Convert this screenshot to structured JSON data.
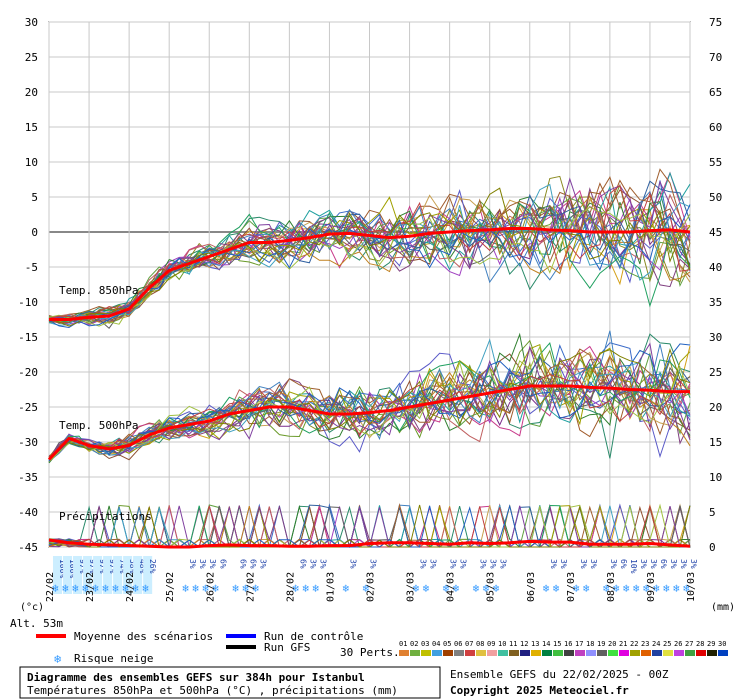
{
  "chart_data": {
    "type": "line",
    "title": "Diagramme des ensembles GEFS sur 384h pour Istanbul",
    "subtitle": "Températures 850hPa et 500hPa (°C) , précipitations (mm)",
    "left_axis": {
      "label": "(°c)",
      "ticks": [
        30,
        25,
        20,
        15,
        10,
        5,
        0,
        -5,
        -10,
        -15,
        -20,
        -25,
        -30,
        -35,
        -40,
        -45
      ],
      "range": [
        -45,
        30
      ]
    },
    "right_axis": {
      "label": "(mm)",
      "ticks": [
        75,
        70,
        65,
        60,
        55,
        50,
        45,
        40,
        35,
        30,
        25,
        20,
        15,
        10,
        5,
        0
      ],
      "range": [
        0,
        75
      ]
    },
    "altitude_label": "Alt. 53m",
    "x_labels": [
      "22/02",
      "23/02",
      "24/02",
      "25/02",
      "26/02",
      "27/02",
      "28/02",
      "01/03",
      "02/03",
      "03/03",
      "04/03",
      "05/03",
      "06/03",
      "07/03",
      "08/03",
      "09/03",
      "10/03"
    ],
    "section_labels": {
      "t850": "Temp. 850hPa",
      "t500": "Temp. 500hPa",
      "precip": "Précipitations"
    },
    "mean_850": {
      "x": [
        0,
        0.5,
        1,
        1.5,
        2,
        2.5,
        3,
        3.5,
        4,
        4.5,
        5,
        5.5,
        6,
        6.5,
        7,
        7.5,
        8,
        8.5,
        9,
        9.5,
        10,
        10.5,
        11,
        11.5,
        12,
        12.5,
        13,
        13.5,
        14,
        14.5,
        15,
        15.5,
        16
      ],
      "y": [
        -12.5,
        -12.5,
        -12.2,
        -12.0,
        -11.0,
        -8.0,
        -5.5,
        -4.5,
        -3.5,
        -2.5,
        -1.5,
        -1.5,
        -1.2,
        -0.8,
        -0.3,
        -0.2,
        -0.5,
        -0.8,
        -0.6,
        -0.2,
        0.0,
        0.2,
        0.3,
        0.5,
        0.5,
        0.3,
        0.2,
        0.0,
        0.0,
        0.0,
        0.2,
        0.3,
        0.0
      ]
    },
    "mean_500": {
      "x": [
        0,
        0.5,
        1,
        1.5,
        2,
        2.5,
        3,
        3.5,
        4,
        4.5,
        5,
        5.5,
        6,
        6.5,
        7,
        7.5,
        8,
        8.5,
        9,
        9.5,
        10,
        10.5,
        11,
        11.5,
        12,
        12.5,
        13,
        13.5,
        14,
        14.5,
        15,
        15.5,
        16
      ],
      "y": [
        -32.5,
        -29.5,
        -30.5,
        -31.0,
        -30.5,
        -29.0,
        -28.0,
        -27.5,
        -27.0,
        -26.0,
        -25.5,
        -25.0,
        -25.0,
        -25.5,
        -26.0,
        -26.0,
        -25.8,
        -25.5,
        -25.0,
        -24.5,
        -24.0,
        -23.5,
        -23.0,
        -22.5,
        -22.0,
        -22.0,
        -22.0,
        -22.2,
        -22.3,
        -22.5,
        -22.6,
        -22.8,
        -22.8
      ]
    },
    "mean_precip_mm": {
      "x": [
        0,
        0.5,
        1,
        1.5,
        2,
        2.5,
        3,
        3.5,
        4,
        4.5,
        5,
        5.5,
        6,
        6.5,
        7,
        7.5,
        8,
        8.5,
        9,
        9.5,
        10,
        10.5,
        11,
        11.5,
        12,
        12.5,
        13,
        13.5,
        14,
        14.5,
        15,
        15.5,
        16
      ],
      "y": [
        1.0,
        0.6,
        0.4,
        0.3,
        0.2,
        0.1,
        0.0,
        0.0,
        0.2,
        0.3,
        0.2,
        0.2,
        0.1,
        0.1,
        0.2,
        0.2,
        0.5,
        0.6,
        0.6,
        0.5,
        0.4,
        0.6,
        0.5,
        0.6,
        0.8,
        0.7,
        0.7,
        0.4,
        0.4,
        0.4,
        0.5,
        0.3,
        0.1
      ]
    },
    "legend": {
      "mean": "Moyenne des scénarios",
      "control": "Run de contrôle",
      "gfs": "Run GFS",
      "snow": "Risque neige",
      "perts": "30 Perts."
    },
    "pert_numbers": [
      "01",
      "02",
      "03",
      "04",
      "05",
      "06",
      "07",
      "08",
      "09",
      "10",
      "11",
      "12",
      "13",
      "14",
      "15",
      "16",
      "17",
      "18",
      "19",
      "20",
      "21",
      "22",
      "23",
      "24",
      "25",
      "26",
      "27",
      "28",
      "29",
      "30"
    ],
    "snow_risk": [
      {
        "day": 0.2,
        "label": "100%"
      },
      {
        "day": 0.45,
        "label": "100%"
      },
      {
        "day": 0.7,
        "label": "97%"
      },
      {
        "day": 0.95,
        "label": "97%"
      },
      {
        "day": 1.2,
        "label": "97%"
      },
      {
        "day": 1.45,
        "label": "97%"
      },
      {
        "day": 1.7,
        "label": "74%"
      },
      {
        "day": 1.95,
        "label": "58%"
      },
      {
        "day": 2.2,
        "label": "48%"
      },
      {
        "day": 2.45,
        "label": "26%"
      },
      {
        "day": 3.45,
        "label": "3%"
      },
      {
        "day": 3.7,
        "label": "3%"
      },
      {
        "day": 3.95,
        "label": "3%"
      },
      {
        "day": 4.2,
        "label": "6%"
      },
      {
        "day": 4.7,
        "label": "6%"
      },
      {
        "day": 4.95,
        "label": "6%"
      },
      {
        "day": 5.2,
        "label": "3%"
      },
      {
        "day": 6.2,
        "label": "6%"
      },
      {
        "day": 6.45,
        "label": "3%"
      },
      {
        "day": 6.7,
        "label": "3%"
      },
      {
        "day": 7.45,
        "label": "3%"
      },
      {
        "day": 7.95,
        "label": "3%"
      },
      {
        "day": 9.2,
        "label": "3%"
      },
      {
        "day": 9.45,
        "label": "3%"
      },
      {
        "day": 9.95,
        "label": "3%"
      },
      {
        "day": 10.2,
        "label": "3%"
      },
      {
        "day": 10.7,
        "label": "3%"
      },
      {
        "day": 10.95,
        "label": "3%"
      },
      {
        "day": 11.2,
        "label": "3%"
      },
      {
        "day": 12.45,
        "label": "3%"
      },
      {
        "day": 12.7,
        "label": "3%"
      },
      {
        "day": 13.2,
        "label": "3%"
      },
      {
        "day": 13.45,
        "label": "3%"
      },
      {
        "day": 13.95,
        "label": "3%"
      },
      {
        "day": 14.2,
        "label": "6%"
      },
      {
        "day": 14.45,
        "label": "10%"
      },
      {
        "day": 14.7,
        "label": "3%"
      },
      {
        "day": 14.95,
        "label": "3%"
      },
      {
        "day": 15.2,
        "label": "6%"
      },
      {
        "day": 15.45,
        "label": "3%"
      },
      {
        "day": 15.7,
        "label": "3%"
      },
      {
        "day": 15.95,
        "label": "3%"
      }
    ],
    "footer": {
      "ensemble": "Ensemble GEFS du 22/02/2025 - 00Z",
      "copyright": "Copyright 2025 Meteociel.fr"
    }
  }
}
